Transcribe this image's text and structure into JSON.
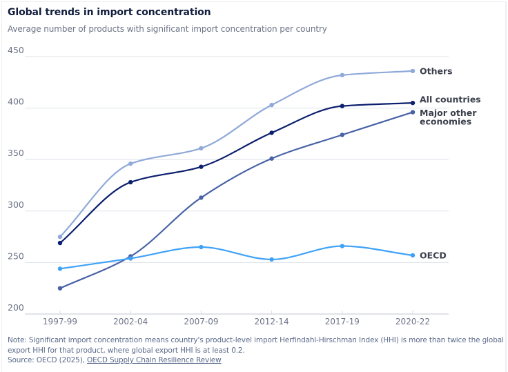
{
  "header": {
    "title": "Global trends in import concentration",
    "subtitle": "Average number of products with significant import concentration per country"
  },
  "chart_data": {
    "type": "line",
    "title": "Global trends in import concentration",
    "subtitle": "Average number of products with significant import concentration per country",
    "xlabel": "",
    "ylabel": "",
    "categories": [
      "1997-99",
      "2002-04",
      "2007-09",
      "2012-14",
      "2017-19",
      "2020-22"
    ],
    "ylim": [
      200,
      450
    ],
    "yticks": [
      200,
      250,
      300,
      350,
      400,
      450
    ],
    "grid": true,
    "legend": "inline-right",
    "series": [
      {
        "name": "Others",
        "label_lines": [
          "Others"
        ],
        "color": "#8fa9d9",
        "values": [
          275,
          346,
          361,
          403,
          432,
          436
        ]
      },
      {
        "name": "All countries",
        "label_lines": [
          "All countries"
        ],
        "color": "#0c1f6e",
        "values": [
          269,
          328,
          343,
          376,
          402,
          405
        ]
      },
      {
        "name": "Major other economies",
        "label_lines": [
          "Major other",
          "economies"
        ],
        "color": "#4862a6",
        "values": [
          225,
          256,
          313,
          351,
          374,
          396
        ]
      },
      {
        "name": "OECD",
        "label_lines": [
          "OECD"
        ],
        "color": "#3fa2f7",
        "values": [
          244,
          254,
          265,
          253,
          266,
          257
        ]
      }
    ]
  },
  "footer": {
    "note": "Note: Significant import concentration means country's product-level import Herfindahl-Hirschman Index (HHI) is more than twice the global export HHI for that product, where global export HHI is at least 0.2.",
    "source_prefix": "Source: OECD (2025), ",
    "source_link": "OECD Supply Chain Resilience Review"
  }
}
